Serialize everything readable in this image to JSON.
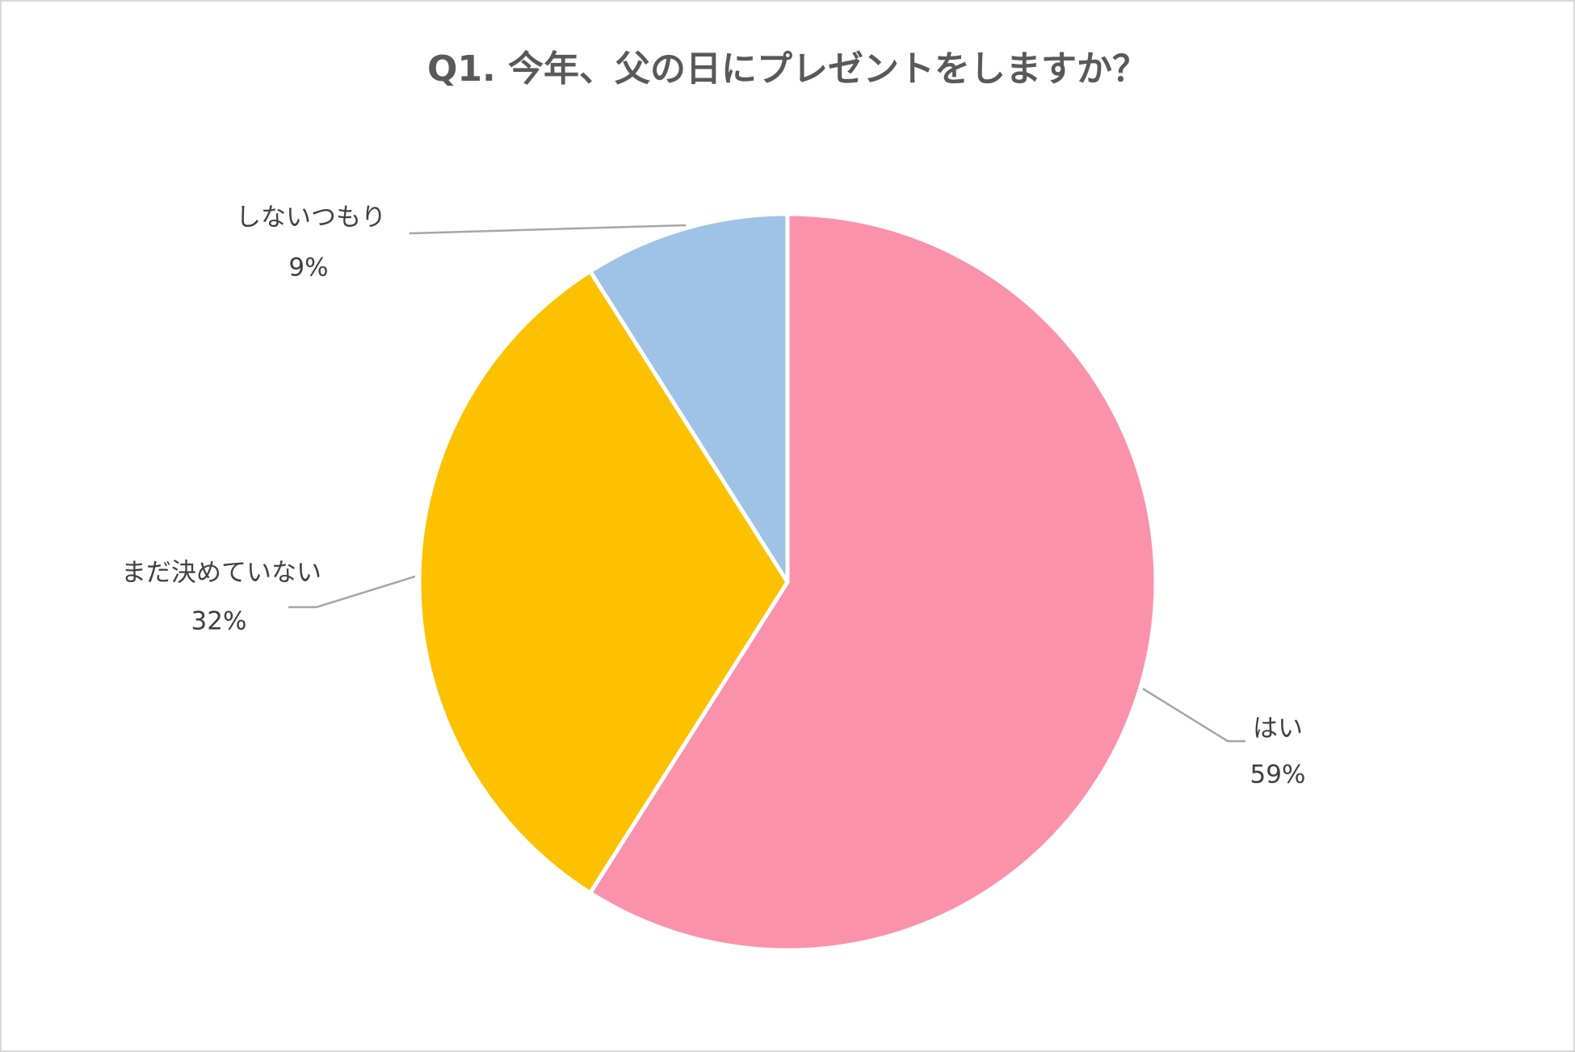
{
  "chart_data": {
    "type": "pie",
    "title": "Q1. 今年、父の日にプレゼントをしますか？",
    "categories": [
      "はい",
      "まだ決めていない",
      "しないつもり"
    ],
    "values": [
      59,
      32,
      9
    ],
    "value_labels": [
      "59%",
      "32%",
      "9%"
    ],
    "colors": [
      "#fb92ab",
      "#fdc100",
      "#9fc3e6"
    ]
  }
}
